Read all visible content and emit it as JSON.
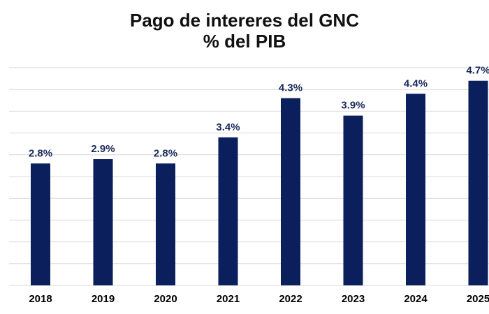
{
  "chart_data": {
    "type": "bar",
    "title_lines": [
      "Pago de intereres del GNC",
      "% del PIB"
    ],
    "categories": [
      "2018",
      "2019",
      "2020",
      "2021",
      "2022",
      "2023",
      "2024",
      "2025"
    ],
    "values": [
      2.8,
      2.9,
      2.8,
      3.4,
      4.3,
      3.9,
      4.4,
      4.7
    ],
    "data_labels": [
      "2.8%",
      "2.9%",
      "2.8%",
      "3.4%",
      "4.3%",
      "3.9%",
      "4.4%",
      "4.7%"
    ],
    "xlabel": "",
    "ylabel": "",
    "ylim": [
      0,
      5
    ],
    "y_tick_labels_shown": false,
    "grid": true,
    "legend": "none",
    "bar_color": "#0a1f5c",
    "label_color": "#1a2a5c",
    "grid_color": "#d9d9d9"
  }
}
